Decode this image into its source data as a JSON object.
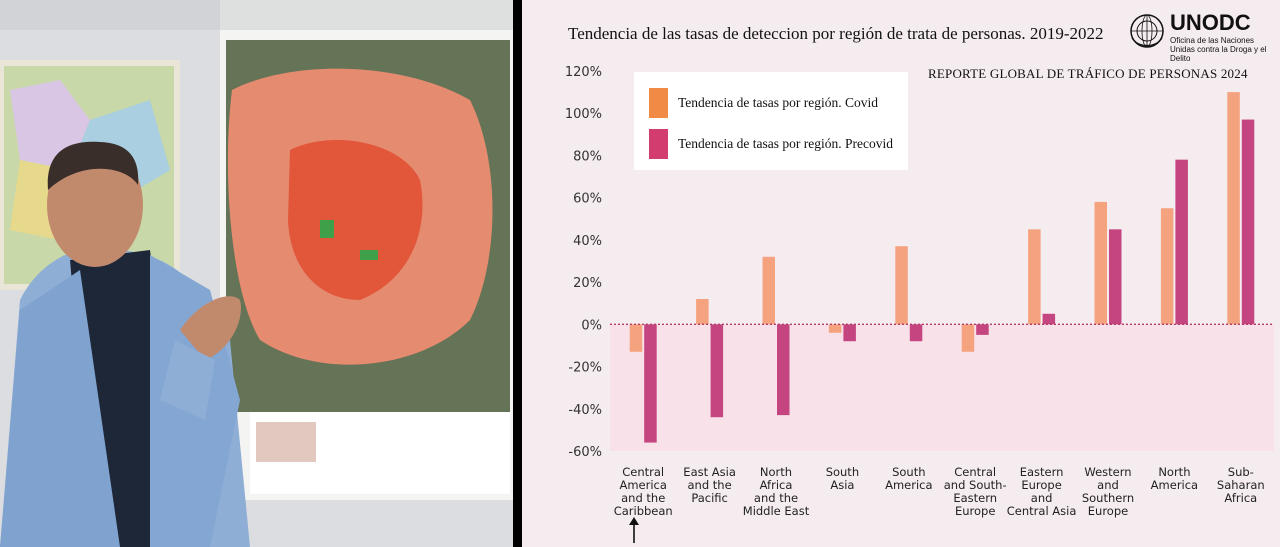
{
  "chart_data": {
    "type": "bar",
    "title": "Tendencia de las tasas de deteccion por región de trata de personas. 2019-2022",
    "subtitle": "REPORTE GLOBAL DE TRÁFICO DE PERSONAS 2024",
    "categories": [
      "Central America and the Caribbean",
      "East Asia and the Pacific",
      "North Africa and the Middle East",
      "South Asia",
      "South America",
      "Central and South-Eastern Europe",
      "Eastern Europe and Central Asia",
      "Western and Southern Europe",
      "North America",
      "Sub-Saharan Africa"
    ],
    "category_lines": [
      [
        "Central",
        "America",
        "and the",
        "Caribbean"
      ],
      [
        "East Asia",
        "and the",
        "Pacific"
      ],
      [
        "North",
        "Africa",
        "and the",
        "Middle East"
      ],
      [
        "South",
        "Asia"
      ],
      [
        "South",
        "America"
      ],
      [
        "Central",
        "and South-",
        "Eastern",
        "Europe"
      ],
      [
        "Eastern",
        "Europe",
        "and",
        "Central Asia"
      ],
      [
        "Western",
        "and",
        "Southern",
        "Europe"
      ],
      [
        "North",
        "America"
      ],
      [
        "Sub-",
        "Saharan",
        "Africa"
      ]
    ],
    "series": [
      {
        "name": "Tendencia de tasas por región. Covid",
        "color": "#f5a27f",
        "values": [
          -13,
          12,
          32,
          -4,
          37,
          -13,
          45,
          58,
          55,
          110
        ]
      },
      {
        "name": "Tendencia de tasas por región. Precovid",
        "color": "#c4457f",
        "values": [
          -56,
          -44,
          -43,
          -8,
          -8,
          -5,
          5,
          45,
          78,
          97
        ]
      }
    ],
    "ylim": [
      -60,
      120
    ],
    "yticks": [
      -60,
      -40,
      -20,
      0,
      20,
      40,
      60,
      80,
      100,
      120
    ],
    "ytick_labels": [
      "-60%",
      "-40%",
      "-20%",
      "0%",
      "20%",
      "40%",
      "60%",
      "80%",
      "100%",
      "120%"
    ],
    "legend_position": "top-left",
    "legend_swatch_colors": [
      "#f08a44",
      "#d23c6e"
    ],
    "negative_region_color": "#f8e1e9"
  },
  "logo": {
    "name": "UNODC",
    "subtitle": "Oficina de las Naciones Unidas contra la Droga y el Delito"
  }
}
